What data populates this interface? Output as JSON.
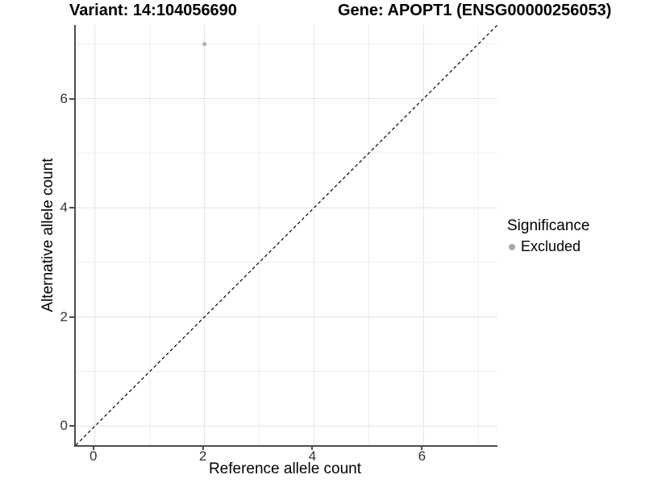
{
  "chart_data": {
    "type": "scatter",
    "title_variant": "Variant: 14:104056690",
    "title_gene": "Gene: APOPT1 (ENSG00000256053)",
    "xlabel": "Reference allele count",
    "ylabel": "Alternative allele count",
    "xlim": [
      -0.35,
      7.35
    ],
    "ylim": [
      -0.35,
      7.35
    ],
    "x_ticks": [
      0,
      2,
      4,
      6
    ],
    "y_ticks": [
      0,
      2,
      4,
      6
    ],
    "grid_values": [
      0,
      1,
      2,
      3,
      4,
      5,
      6,
      7
    ],
    "grid": "on",
    "points": [
      {
        "x": 2,
        "y": 7,
        "significance": "Excluded"
      }
    ],
    "identity_line": {
      "slope": 1,
      "intercept": 0,
      "linetype": "dashed",
      "color": "#000000"
    },
    "legend": {
      "title": "Significance",
      "position": "right",
      "entries": [
        {
          "label": "Excluded",
          "color": "#a8a8a8"
        }
      ]
    },
    "colors": {
      "point": "#b3b3b3",
      "grid_major": "#e3e3e3",
      "grid_minor": "#ededed",
      "axis_line": "#4d4d4d",
      "tick_label": "#333333",
      "background": "#ffffff"
    }
  }
}
